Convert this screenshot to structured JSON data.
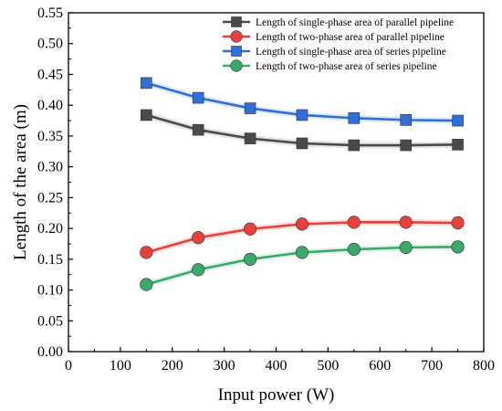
{
  "chart_data": {
    "type": "line",
    "title": "",
    "xlabel": "Input power (W)",
    "ylabel": "Length of the area (m)",
    "xlim": [
      0,
      800
    ],
    "ylim": [
      0.0,
      0.55
    ],
    "xticks": [
      "0",
      "100",
      "200",
      "300",
      "400",
      "500",
      "600",
      "700",
      "800"
    ],
    "yticks": [
      "0.00",
      "0.05",
      "0.10",
      "0.15",
      "0.20",
      "0.25",
      "0.30",
      "0.35",
      "0.40",
      "0.45",
      "0.50",
      "0.55"
    ],
    "grid": false,
    "legend_position": "top-right",
    "x": [
      150,
      250,
      350,
      450,
      550,
      650,
      750
    ],
    "series": [
      {
        "name": "Length of single-phase area of parallel pipeline",
        "marker": "square",
        "color": "#4a4a4a",
        "values": [
          0.384,
          0.36,
          0.346,
          0.338,
          0.335,
          0.335,
          0.336
        ]
      },
      {
        "name": "Length of two-phase area of parallel pipeline",
        "marker": "circle",
        "color": "#e8413c",
        "values": [
          0.161,
          0.185,
          0.199,
          0.207,
          0.21,
          0.21,
          0.209
        ]
      },
      {
        "name": "Length of single-phase area of series pipeline",
        "marker": "square",
        "color": "#2f6fd6",
        "values": [
          0.436,
          0.412,
          0.395,
          0.384,
          0.379,
          0.376,
          0.375
        ]
      },
      {
        "name": "Length of two-phase area of series pipeline",
        "marker": "circle",
        "color": "#3aaa6a",
        "values": [
          0.109,
          0.133,
          0.15,
          0.161,
          0.166,
          0.169,
          0.17
        ]
      }
    ]
  }
}
